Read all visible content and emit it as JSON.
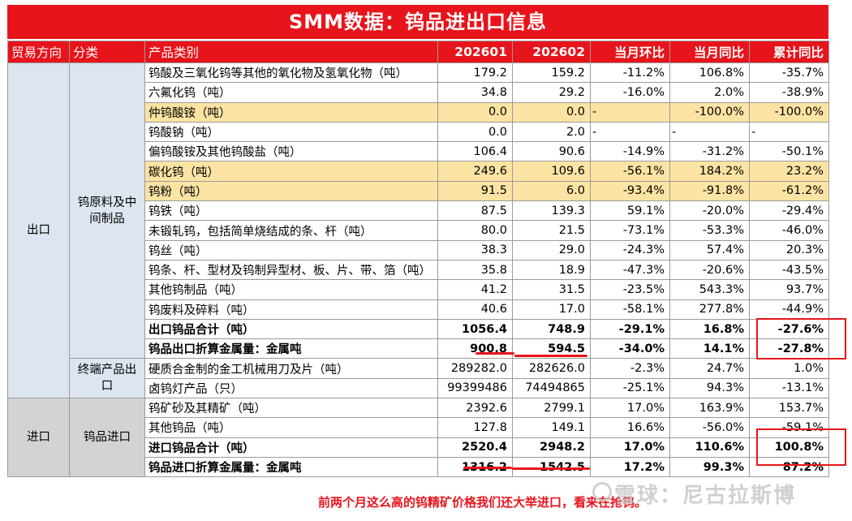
{
  "title": "SMM数据：钨品进出口信息",
  "headers": [
    "贸易方向",
    "分类",
    "产品类别",
    "202601",
    "202602",
    "当月环比",
    "当月同比",
    "累计同比"
  ],
  "groups": {
    "export_dir": "出口",
    "export_cat1": "钨原料及中间制品",
    "export_cat2": "终端产品出口",
    "import_dir": "进口",
    "import_cat": "钨品进口"
  },
  "export_rows": [
    [
      "钨酸及三氧化钨等其他的氧化物及氢氧化物（吨）",
      "179.2",
      "159.2",
      "-11.2%",
      "106.8%",
      "-35.7%"
    ],
    [
      "六氟化钨（吨）",
      "34.8",
      "29.2",
      "-16.0%",
      "2.0%",
      "-38.9%"
    ],
    [
      "仲钨酸铵（吨）",
      "0.0",
      "0.0",
      "-",
      "-100.0%",
      "-100.0%"
    ],
    [
      "钨酸钠（吨）",
      "0.0",
      "2.0",
      "-",
      "-",
      "-"
    ],
    [
      "偏钨酸铵及其他钨酸盐（吨）",
      "106.4",
      "90.6",
      "-14.9%",
      "-31.2%",
      "-50.1%"
    ],
    [
      "碳化钨（吨）",
      "249.6",
      "109.6",
      "-56.1%",
      "184.2%",
      "23.2%"
    ],
    [
      "钨粉（吨）",
      "91.5",
      "6.0",
      "-93.4%",
      "-91.8%",
      "-61.2%"
    ],
    [
      "钨铁（吨）",
      "87.5",
      "139.3",
      "59.1%",
      "-20.0%",
      "-29.4%"
    ],
    [
      "未锻轧钨，包括简单烧结成的条、杆（吨）",
      "80.0",
      "21.5",
      "-73.1%",
      "-53.3%",
      "-46.0%"
    ],
    [
      "钨丝（吨）",
      "38.3",
      "29.0",
      "-24.3%",
      "57.4%",
      "20.3%"
    ],
    [
      "钨条、杆、型材及钨制异型材、板、片、带、箔（吨）",
      "35.8",
      "18.9",
      "-47.3%",
      "-20.6%",
      "-43.5%"
    ],
    [
      "其他钨制品（吨）",
      "41.2",
      "31.5",
      "-23.5%",
      "543.3%",
      "93.7%"
    ],
    [
      "钨废料及碎料（吨）",
      "40.6",
      "17.0",
      "-58.1%",
      "277.8%",
      "-44.9%"
    ],
    [
      "出口钨品合计（吨）",
      "1056.4",
      "748.9",
      "-29.1%",
      "16.8%",
      "-27.6%"
    ],
    [
      "钨品出口折算金属量：金属吨",
      "900.8",
      "594.5",
      "-34.0%",
      "14.1%",
      "-27.8%"
    ]
  ],
  "end_rows": [
    [
      "硬质合金制的金工机械用刀及片（吨）",
      "289282.0",
      "282626.0",
      "-2.3%",
      "24.7%",
      "1.0%"
    ],
    [
      "卤钨灯产品（只）",
      "99399486",
      "74494865",
      "-25.1%",
      "94.3%",
      "-13.1%"
    ]
  ],
  "import_rows": [
    [
      "钨矿砂及其精矿（吨）",
      "2392.6",
      "2799.1",
      "17.0%",
      "163.9%",
      "153.7%"
    ],
    [
      "其他钨品（吨）",
      "127.8",
      "149.1",
      "16.6%",
      "-56.0%",
      "-59.1%"
    ],
    [
      "进口钨品合计（吨）",
      "2520.4",
      "2948.2",
      "17.0%",
      "110.6%",
      "100.8%"
    ],
    [
      "钨品进口折算金属量：金属吨",
      "1316.2",
      "1542.5",
      "17.2%",
      "99.3%",
      "87.2%"
    ]
  ],
  "footer_note": "前两个月这么高的钨精矿价格我们还大举进口，看来在抢钨。",
  "watermark": "雪球：尼古拉斯博",
  "colors": {
    "accent_red": "#e8141b",
    "highlight_yellow": "#fbe3a3",
    "export_bg": "#dde6f0",
    "import_bg": "#d3d3d3"
  }
}
